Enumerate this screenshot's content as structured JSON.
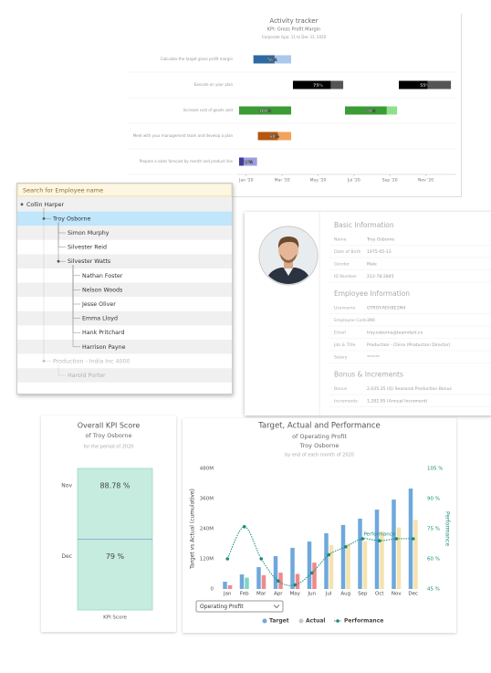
{
  "activity_tracker": {
    "type": "gantt",
    "title": "Activity tracker",
    "subtitle": "KPI: Gross Profit Margin",
    "period": "Corporate Gpo: 11 to Dec 31, 2020",
    "xlim": [
      -0.5,
      11.7
    ],
    "xticks": [
      {
        "value": 0,
        "label": "Jan '20"
      },
      {
        "value": 2,
        "label": "Mar '20"
      },
      {
        "value": 4,
        "label": "May '20"
      },
      {
        "value": 6,
        "label": "Jul '20"
      },
      {
        "value": 8,
        "label": "Sep '20"
      },
      {
        "value": 10,
        "label": "Nov '20"
      }
    ],
    "tasks": [
      {
        "label": "Calculate the target gross profit margin",
        "bars": [
          {
            "start": 0.4,
            "end": 2.5,
            "progress": 56,
            "progress_label": "56%",
            "color": "#2e6aa1",
            "light_color": "#a9c9ec"
          }
        ]
      },
      {
        "label": "Execute on your plan",
        "bars": [
          {
            "start": 2.6,
            "end": 5.4,
            "progress": 75,
            "progress_label": "75%",
            "color": "#000000",
            "light_color": "#555555"
          },
          {
            "start": 8.5,
            "end": 11.4,
            "progress": 55,
            "progress_label": "55%",
            "color": "#000000",
            "light_color": "#555555"
          }
        ]
      },
      {
        "label": "Increase cost of goods sold",
        "bars": [
          {
            "start": -0.4,
            "end": 2.5,
            "progress": 100,
            "progress_label": "100%",
            "color": "#3a9c34",
            "light_color": "#8fe08a"
          },
          {
            "start": 5.5,
            "end": 8.4,
            "progress": 80,
            "progress_label": "80%",
            "color": "#3a9c34",
            "light_color": "#8fe08a"
          }
        ]
      },
      {
        "label": "Meet with your management team and develop a plan",
        "bars": [
          {
            "start": 0.65,
            "end": 2.5,
            "progress": 60,
            "progress_label": "60%",
            "color": "#b5570f",
            "light_color": "#f3a25c"
          }
        ]
      },
      {
        "label": "Prepare a sales forecast by month and product line",
        "bars": [
          {
            "start": -0.4,
            "end": 0.6,
            "progress": 25,
            "progress_label": "25%",
            "color": "#3d3d9e",
            "light_color": "#9d9de0"
          }
        ]
      }
    ]
  },
  "employee_tree": {
    "search_placeholder": "Search for Employee name",
    "root": {
      "label": "Collin Harper",
      "children": [
        {
          "label": "Troy Osborne",
          "selected": true,
          "children": [
            {
              "label": "Simon Murphy"
            },
            {
              "label": "Silvester Reid"
            },
            {
              "label": "Silvester Watts",
              "children": [
                {
                  "label": "Nathan Foster"
                },
                {
                  "label": "Nelson Woods"
                },
                {
                  "label": "Jesse Oliver"
                },
                {
                  "label": "Emma Lloyd"
                },
                {
                  "label": "Hank Pritchard"
                },
                {
                  "label": "Harrison Payne"
                }
              ]
            }
          ]
        },
        {
          "label": "Production - India Inc 4000",
          "faded": true,
          "children": [
            {
              "label": "Harold Porter",
              "faded": true
            }
          ]
        }
      ]
    }
  },
  "employee_profile": {
    "sections": [
      {
        "heading": "Basic Information",
        "fields": [
          {
            "label": "Name",
            "value": "Troy Osborne"
          },
          {
            "label": "Date of Birth",
            "value": "1975-05-13"
          },
          {
            "label": "Gender",
            "value": "Male"
          },
          {
            "label": "ID Number",
            "value": "212-78-2845"
          }
        ]
      },
      {
        "heading": "Employee Information",
        "fields": [
          {
            "label": "Username",
            "value": "OTROY-REHBE1M4"
          },
          {
            "label": "Employee Code",
            "value": "390"
          },
          {
            "label": "Email",
            "value": "troy.osborne@teamdart.co"
          },
          {
            "label": "Job & Title",
            "value": "Production - China (Production Director)"
          },
          {
            "label": "Salary",
            "value": "******"
          }
        ]
      },
      {
        "heading": "Bonus & Increments",
        "fields": [
          {
            "label": "Bonus",
            "value": "2,035.35 (Q) Seasonal Production Bonus"
          },
          {
            "label": "Increments",
            "value": "1,282.95 (Annual Increment)"
          }
        ]
      }
    ]
  },
  "kpi_score": {
    "type": "bullet",
    "title": "Overall KPI Score",
    "subtitle": "of Troy Osborne",
    "period": "for the period of 2020",
    "categories": [
      "Nov",
      "Dec"
    ],
    "values": [
      88.78,
      79
    ],
    "value_labels": [
      "88.78 %",
      "79 %"
    ],
    "xlabel": "KPI Score",
    "color": "#c6ecdf"
  },
  "performance_chart": {
    "type": "bar_line",
    "title": "Target, Actual and Performance",
    "subtitle": "of Operating Profit",
    "employee": "Troy Osborne",
    "period": "by end of each month of 2020",
    "categories": [
      "Jan",
      "Feb",
      "Mar",
      "Apr",
      "May",
      "Jun",
      "Jul",
      "Aug",
      "Sep",
      "Oct",
      "Nov",
      "Dec"
    ],
    "ylabel": "Target vs Actual (cumulative)",
    "y2label": "Performance",
    "ylim": [
      0,
      480
    ],
    "yticks": [
      0,
      {
        "value": 120,
        "label": "120M"
      },
      {
        "value": 240,
        "label": "240M"
      },
      {
        "value": 360,
        "label": "360M"
      },
      {
        "value": 480,
        "label": "480M"
      }
    ],
    "y2lim": [
      45,
      105
    ],
    "y2ticks": [
      {
        "value": 45,
        "label": "45 %"
      },
      {
        "value": 60,
        "label": "60 %"
      },
      {
        "value": 75,
        "label": "75 %"
      },
      {
        "value": 90,
        "label": "90 %"
      },
      {
        "value": 105,
        "label": "105 %"
      }
    ],
    "grid": false,
    "series": [
      {
        "name": "Target",
        "color": "#6fa8dc",
        "values": [
          29,
          58,
          87,
          131,
          164,
          189,
          222,
          255,
          280,
          316,
          356,
          400
        ]
      },
      {
        "name": "Actual",
        "color": "#c8c8c8",
        "point_colors": [
          "#f08a8a",
          "#7fd6c2",
          "#f08a8a",
          "#f08a8a",
          "#f08a8a",
          "#f08a8a",
          "#f5e2ad",
          "#f5e2ad",
          "#f5e2ad",
          "#f5e2ad",
          "#f5e2ad",
          "#f5e2ad"
        ],
        "values": [
          15,
          45,
          55,
          65,
          60,
          105,
          175,
          180,
          190,
          230,
          245,
          275
        ]
      },
      {
        "name": "Performance",
        "color": "#1a8a7a",
        "axis": "y2",
        "values": [
          60,
          76,
          60,
          49,
          47,
          53,
          62,
          66,
          70,
          69,
          70,
          70
        ]
      }
    ],
    "annotation": "Performance",
    "dropdown": "Operating Profit"
  }
}
